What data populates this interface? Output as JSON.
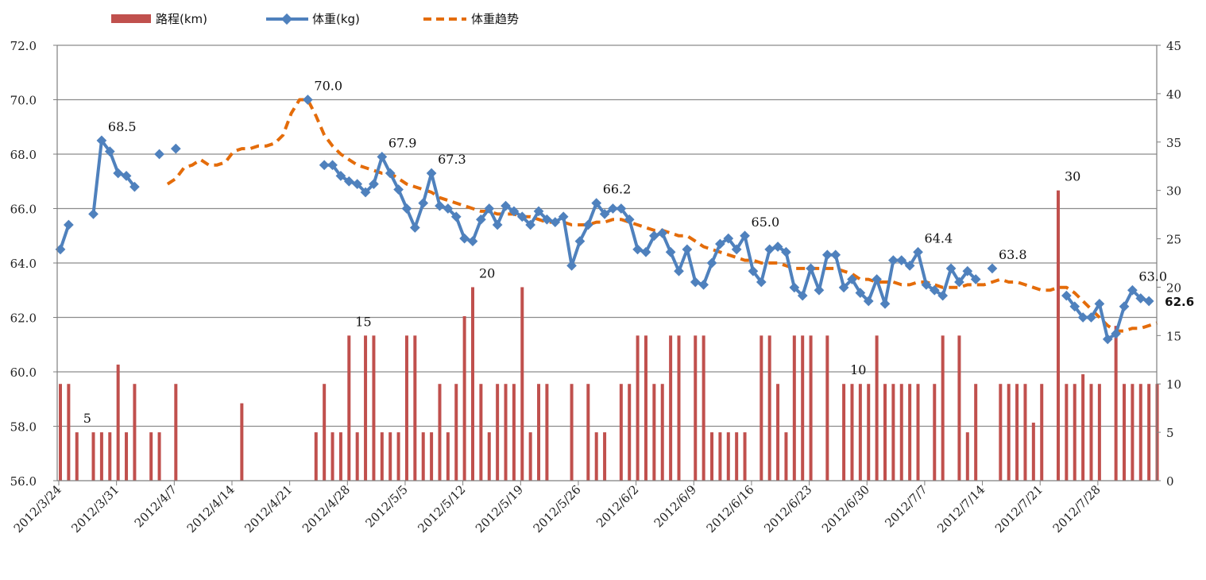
{
  "chart_data": {
    "type": "bar+line",
    "start_date": "2012-03-24",
    "legend": {
      "placement": "top-left",
      "items": [
        {
          "key": "bar",
          "label": "路程(km)"
        },
        {
          "key": "weight",
          "label": "体重(kg)"
        },
        {
          "key": "trend",
          "label": "体重趋势"
        }
      ]
    },
    "y_left": {
      "min": 56,
      "max": 72,
      "step": 2,
      "ticks": [
        "56.0",
        "58.0",
        "60.0",
        "62.0",
        "64.0",
        "66.0",
        "68.0",
        "70.0",
        "72.0"
      ]
    },
    "y_right": {
      "min": 0,
      "max": 45,
      "step": 5,
      "ticks": [
        "0",
        "5",
        "10",
        "15",
        "20",
        "25",
        "30",
        "35",
        "40",
        "45"
      ]
    },
    "x_ticks": [
      "2012/3/24",
      "2012/3/31",
      "2012/4/7",
      "2012/4/14",
      "2012/4/21",
      "2012/4/28",
      "2012/5/5",
      "2012/5/12",
      "2012/5/19",
      "2012/5/26",
      "2012/6/2",
      "2012/6/9",
      "2012/6/16",
      "2012/6/23",
      "2012/6/30",
      "2012/7/7",
      "2012/7/14",
      "2012/7/21",
      "2012/7/28"
    ],
    "grid": true,
    "colors": {
      "bar": "#c0504d",
      "weight": "#4f81bd",
      "trend": "#e46c0a"
    },
    "distance_km": [
      [
        0,
        10
      ],
      [
        1,
        10
      ],
      [
        2,
        5
      ],
      [
        4,
        5
      ],
      [
        5,
        5
      ],
      [
        6,
        5
      ],
      [
        7,
        12
      ],
      [
        8,
        5
      ],
      [
        9,
        10
      ],
      [
        11,
        5
      ],
      [
        12,
        5
      ],
      [
        14,
        10
      ],
      [
        22,
        8
      ],
      [
        31,
        5
      ],
      [
        32,
        10
      ],
      [
        33,
        5
      ],
      [
        34,
        5
      ],
      [
        35,
        15
      ],
      [
        36,
        5
      ],
      [
        37,
        15
      ],
      [
        38,
        15
      ],
      [
        39,
        5
      ],
      [
        40,
        5
      ],
      [
        41,
        5
      ],
      [
        42,
        15
      ],
      [
        43,
        15
      ],
      [
        44,
        5
      ],
      [
        45,
        5
      ],
      [
        46,
        10
      ],
      [
        47,
        5
      ],
      [
        48,
        10
      ],
      [
        49,
        17
      ],
      [
        50,
        20
      ],
      [
        51,
        10
      ],
      [
        52,
        5
      ],
      [
        53,
        10
      ],
      [
        54,
        10
      ],
      [
        55,
        10
      ],
      [
        56,
        20
      ],
      [
        57,
        5
      ],
      [
        58,
        10
      ],
      [
        59,
        10
      ],
      [
        62,
        10
      ],
      [
        64,
        10
      ],
      [
        65,
        5
      ],
      [
        66,
        5
      ],
      [
        68,
        10
      ],
      [
        69,
        10
      ],
      [
        70,
        15
      ],
      [
        71,
        15
      ],
      [
        72,
        10
      ],
      [
        73,
        10
      ],
      [
        74,
        15
      ],
      [
        75,
        15
      ],
      [
        77,
        15
      ],
      [
        78,
        15
      ],
      [
        79,
        5
      ],
      [
        80,
        5
      ],
      [
        81,
        5
      ],
      [
        82,
        5
      ],
      [
        83,
        5
      ],
      [
        85,
        15
      ],
      [
        86,
        15
      ],
      [
        87,
        10
      ],
      [
        88,
        5
      ],
      [
        89,
        15
      ],
      [
        90,
        15
      ],
      [
        91,
        15
      ],
      [
        93,
        15
      ],
      [
        95,
        10
      ],
      [
        96,
        10
      ],
      [
        97,
        10
      ],
      [
        98,
        10
      ],
      [
        99,
        15
      ],
      [
        100,
        10
      ],
      [
        101,
        10
      ],
      [
        102,
        10
      ],
      [
        103,
        10
      ],
      [
        104,
        10
      ],
      [
        106,
        10
      ],
      [
        107,
        15
      ],
      [
        109,
        15
      ],
      [
        110,
        5
      ],
      [
        111,
        10
      ],
      [
        114,
        10
      ],
      [
        115,
        10
      ],
      [
        116,
        10
      ],
      [
        117,
        10
      ],
      [
        118,
        6
      ],
      [
        119,
        10
      ],
      [
        121,
        30
      ],
      [
        122,
        10
      ],
      [
        123,
        10
      ],
      [
        124,
        11
      ],
      [
        125,
        10
      ],
      [
        126,
        10
      ],
      [
        128,
        16
      ],
      [
        129,
        10
      ],
      [
        130,
        10
      ],
      [
        131,
        10
      ],
      [
        132,
        10
      ],
      [
        133,
        10
      ]
    ],
    "weight_segments": [
      [
        [
          0,
          64.5
        ],
        [
          1,
          65.4
        ]
      ],
      [
        [
          4,
          65.8
        ],
        [
          5,
          68.5
        ],
        [
          6,
          68.1
        ],
        [
          7,
          67.3
        ],
        [
          8,
          67.2
        ],
        [
          9,
          66.8
        ]
      ],
      [
        [
          12,
          68.0
        ]
      ],
      [
        [
          14,
          68.2
        ]
      ],
      [
        [
          30,
          70.0
        ]
      ],
      [
        [
          32,
          67.6
        ],
        [
          33,
          67.6
        ],
        [
          34,
          67.2
        ],
        [
          35,
          67.0
        ],
        [
          36,
          66.9
        ],
        [
          37,
          66.6
        ],
        [
          38,
          66.9
        ],
        [
          39,
          67.9
        ],
        [
          40,
          67.3
        ],
        [
          41,
          66.7
        ],
        [
          42,
          66.0
        ],
        [
          43,
          65.3
        ],
        [
          44,
          66.2
        ],
        [
          45,
          67.3
        ],
        [
          46,
          66.1
        ],
        [
          47,
          66.0
        ],
        [
          48,
          65.7
        ],
        [
          49,
          64.9
        ],
        [
          50,
          64.8
        ],
        [
          51,
          65.6
        ],
        [
          52,
          66.0
        ],
        [
          53,
          65.4
        ],
        [
          54,
          66.1
        ],
        [
          55,
          65.9
        ],
        [
          56,
          65.7
        ],
        [
          57,
          65.4
        ],
        [
          58,
          65.9
        ],
        [
          59,
          65.6
        ],
        [
          60,
          65.5
        ],
        [
          61,
          65.7
        ],
        [
          62,
          63.9
        ],
        [
          63,
          64.8
        ],
        [
          64,
          65.4
        ],
        [
          65,
          66.2
        ],
        [
          66,
          65.8
        ],
        [
          67,
          66.0
        ],
        [
          68,
          66.0
        ],
        [
          69,
          65.6
        ],
        [
          70,
          64.5
        ],
        [
          71,
          64.4
        ],
        [
          72,
          65.0
        ],
        [
          73,
          65.1
        ],
        [
          74,
          64.4
        ],
        [
          75,
          63.7
        ],
        [
          76,
          64.5
        ],
        [
          77,
          63.3
        ],
        [
          78,
          63.2
        ],
        [
          79,
          64.0
        ],
        [
          80,
          64.7
        ],
        [
          81,
          64.9
        ],
        [
          82,
          64.5
        ],
        [
          83,
          65.0
        ],
        [
          84,
          63.7
        ],
        [
          85,
          63.3
        ],
        [
          86,
          64.5
        ],
        [
          87,
          64.6
        ],
        [
          88,
          64.4
        ],
        [
          89,
          63.1
        ],
        [
          90,
          62.8
        ],
        [
          91,
          63.8
        ],
        [
          92,
          63.0
        ],
        [
          93,
          64.3
        ],
        [
          94,
          64.3
        ],
        [
          95,
          63.1
        ],
        [
          96,
          63.4
        ],
        [
          97,
          62.9
        ],
        [
          98,
          62.6
        ],
        [
          99,
          63.4
        ],
        [
          100,
          62.5
        ],
        [
          101,
          64.1
        ],
        [
          102,
          64.1
        ],
        [
          103,
          63.9
        ],
        [
          104,
          64.4
        ],
        [
          105,
          63.2
        ],
        [
          106,
          63.0
        ],
        [
          107,
          62.8
        ],
        [
          108,
          63.8
        ],
        [
          109,
          63.3
        ],
        [
          110,
          63.7
        ],
        [
          111,
          63.4
        ]
      ],
      [
        [
          113,
          63.8
        ]
      ],
      [
        [
          122,
          62.8
        ],
        [
          123,
          62.4
        ],
        [
          124,
          62.0
        ],
        [
          125,
          62.0
        ],
        [
          126,
          62.5
        ],
        [
          127,
          61.2
        ],
        [
          128,
          61.4
        ],
        [
          129,
          62.4
        ],
        [
          130,
          63.0
        ],
        [
          131,
          62.7
        ],
        [
          132,
          62.6
        ]
      ]
    ],
    "trend_points": [
      [
        13,
        66.9
      ],
      [
        14,
        67.1
      ],
      [
        15,
        67.5
      ],
      [
        16,
        67.6
      ],
      [
        17,
        67.8
      ],
      [
        18,
        67.6
      ],
      [
        19,
        67.6
      ],
      [
        20,
        67.7
      ],
      [
        21,
        68.1
      ],
      [
        22,
        68.2
      ],
      [
        23,
        68.2
      ],
      [
        24,
        68.3
      ],
      [
        25,
        68.3
      ],
      [
        26,
        68.4
      ],
      [
        27,
        68.7
      ],
      [
        28,
        69.5
      ],
      [
        29,
        70.0
      ],
      [
        30,
        70.0
      ],
      [
        31,
        69.4
      ],
      [
        32,
        68.7
      ],
      [
        33,
        68.3
      ],
      [
        34,
        68.0
      ],
      [
        35,
        67.8
      ],
      [
        36,
        67.6
      ],
      [
        37,
        67.5
      ],
      [
        38,
        67.4
      ],
      [
        39,
        67.3
      ],
      [
        40,
        67.3
      ],
      [
        41,
        67.1
      ],
      [
        42,
        66.9
      ],
      [
        43,
        66.8
      ],
      [
        44,
        66.7
      ],
      [
        45,
        66.6
      ],
      [
        46,
        66.4
      ],
      [
        47,
        66.3
      ],
      [
        48,
        66.2
      ],
      [
        49,
        66.1
      ],
      [
        50,
        66.0
      ],
      [
        51,
        65.9
      ],
      [
        52,
        65.9
      ],
      [
        53,
        65.8
      ],
      [
        54,
        65.8
      ],
      [
        55,
        65.8
      ],
      [
        56,
        65.7
      ],
      [
        57,
        65.7
      ],
      [
        58,
        65.6
      ],
      [
        59,
        65.5
      ],
      [
        60,
        65.5
      ],
      [
        61,
        65.5
      ],
      [
        62,
        65.4
      ],
      [
        63,
        65.4
      ],
      [
        64,
        65.4
      ],
      [
        65,
        65.5
      ],
      [
        66,
        65.5
      ],
      [
        67,
        65.6
      ],
      [
        68,
        65.6
      ],
      [
        69,
        65.5
      ],
      [
        70,
        65.4
      ],
      [
        71,
        65.3
      ],
      [
        72,
        65.2
      ],
      [
        73,
        65.2
      ],
      [
        74,
        65.1
      ],
      [
        75,
        65.0
      ],
      [
        76,
        65.0
      ],
      [
        77,
        64.8
      ],
      [
        78,
        64.6
      ],
      [
        79,
        64.5
      ],
      [
        80,
        64.4
      ],
      [
        81,
        64.3
      ],
      [
        82,
        64.2
      ],
      [
        83,
        64.1
      ],
      [
        84,
        64.1
      ],
      [
        85,
        64.0
      ],
      [
        86,
        64.0
      ],
      [
        87,
        64.0
      ],
      [
        88,
        63.9
      ],
      [
        89,
        63.8
      ],
      [
        90,
        63.8
      ],
      [
        91,
        63.8
      ],
      [
        92,
        63.8
      ],
      [
        93,
        63.8
      ],
      [
        94,
        63.8
      ],
      [
        95,
        63.7
      ],
      [
        96,
        63.6
      ],
      [
        97,
        63.4
      ],
      [
        98,
        63.4
      ],
      [
        99,
        63.3
      ],
      [
        100,
        63.3
      ],
      [
        101,
        63.3
      ],
      [
        102,
        63.2
      ],
      [
        103,
        63.2
      ],
      [
        104,
        63.3
      ],
      [
        105,
        63.3
      ],
      [
        106,
        63.2
      ],
      [
        107,
        63.1
      ],
      [
        108,
        63.1
      ],
      [
        109,
        63.1
      ],
      [
        110,
        63.2
      ],
      [
        111,
        63.2
      ],
      [
        112,
        63.2
      ],
      [
        113,
        63.3
      ],
      [
        114,
        63.4
      ],
      [
        115,
        63.3
      ],
      [
        116,
        63.3
      ],
      [
        117,
        63.2
      ],
      [
        118,
        63.1
      ],
      [
        119,
        63.0
      ],
      [
        120,
        63.0
      ],
      [
        121,
        63.1
      ],
      [
        122,
        63.1
      ],
      [
        123,
        62.9
      ],
      [
        124,
        62.6
      ],
      [
        125,
        62.3
      ],
      [
        126,
        62.0
      ],
      [
        127,
        61.7
      ],
      [
        128,
        61.5
      ],
      [
        129,
        61.5
      ],
      [
        130,
        61.6
      ],
      [
        131,
        61.6
      ],
      [
        132,
        61.7
      ],
      [
        133,
        61.8
      ]
    ],
    "labels": [
      {
        "text": "68.5",
        "x": 5,
        "axis": "left",
        "y": 68.5
      },
      {
        "text": "70.0",
        "x": 30,
        "axis": "left",
        "y": 70.0
      },
      {
        "text": "67.9",
        "x": 39,
        "axis": "left",
        "y": 67.9
      },
      {
        "text": "67.3",
        "x": 45,
        "axis": "left",
        "y": 67.3
      },
      {
        "text": "66.2",
        "x": 65,
        "axis": "left",
        "y": 66.2
      },
      {
        "text": "65.0",
        "x": 83,
        "axis": "left",
        "y": 65.0
      },
      {
        "text": "64.4",
        "x": 104,
        "axis": "left",
        "y": 64.4
      },
      {
        "text": "63.8",
        "x": 113,
        "axis": "left",
        "y": 63.8
      },
      {
        "text": "63.0",
        "x": 130,
        "axis": "left",
        "y": 63.0
      },
      {
        "text": "62.6",
        "x": 132,
        "axis": "left",
        "y": 62.6,
        "bold": true
      },
      {
        "text": "5",
        "x": 2,
        "axis": "right",
        "y": 5
      },
      {
        "text": "15",
        "x": 35,
        "axis": "right",
        "y": 15
      },
      {
        "text": "20",
        "x": 50,
        "axis": "right",
        "y": 20
      },
      {
        "text": "10",
        "x": 95,
        "axis": "right",
        "y": 10
      },
      {
        "text": "30",
        "x": 121,
        "axis": "right",
        "y": 30
      }
    ]
  }
}
